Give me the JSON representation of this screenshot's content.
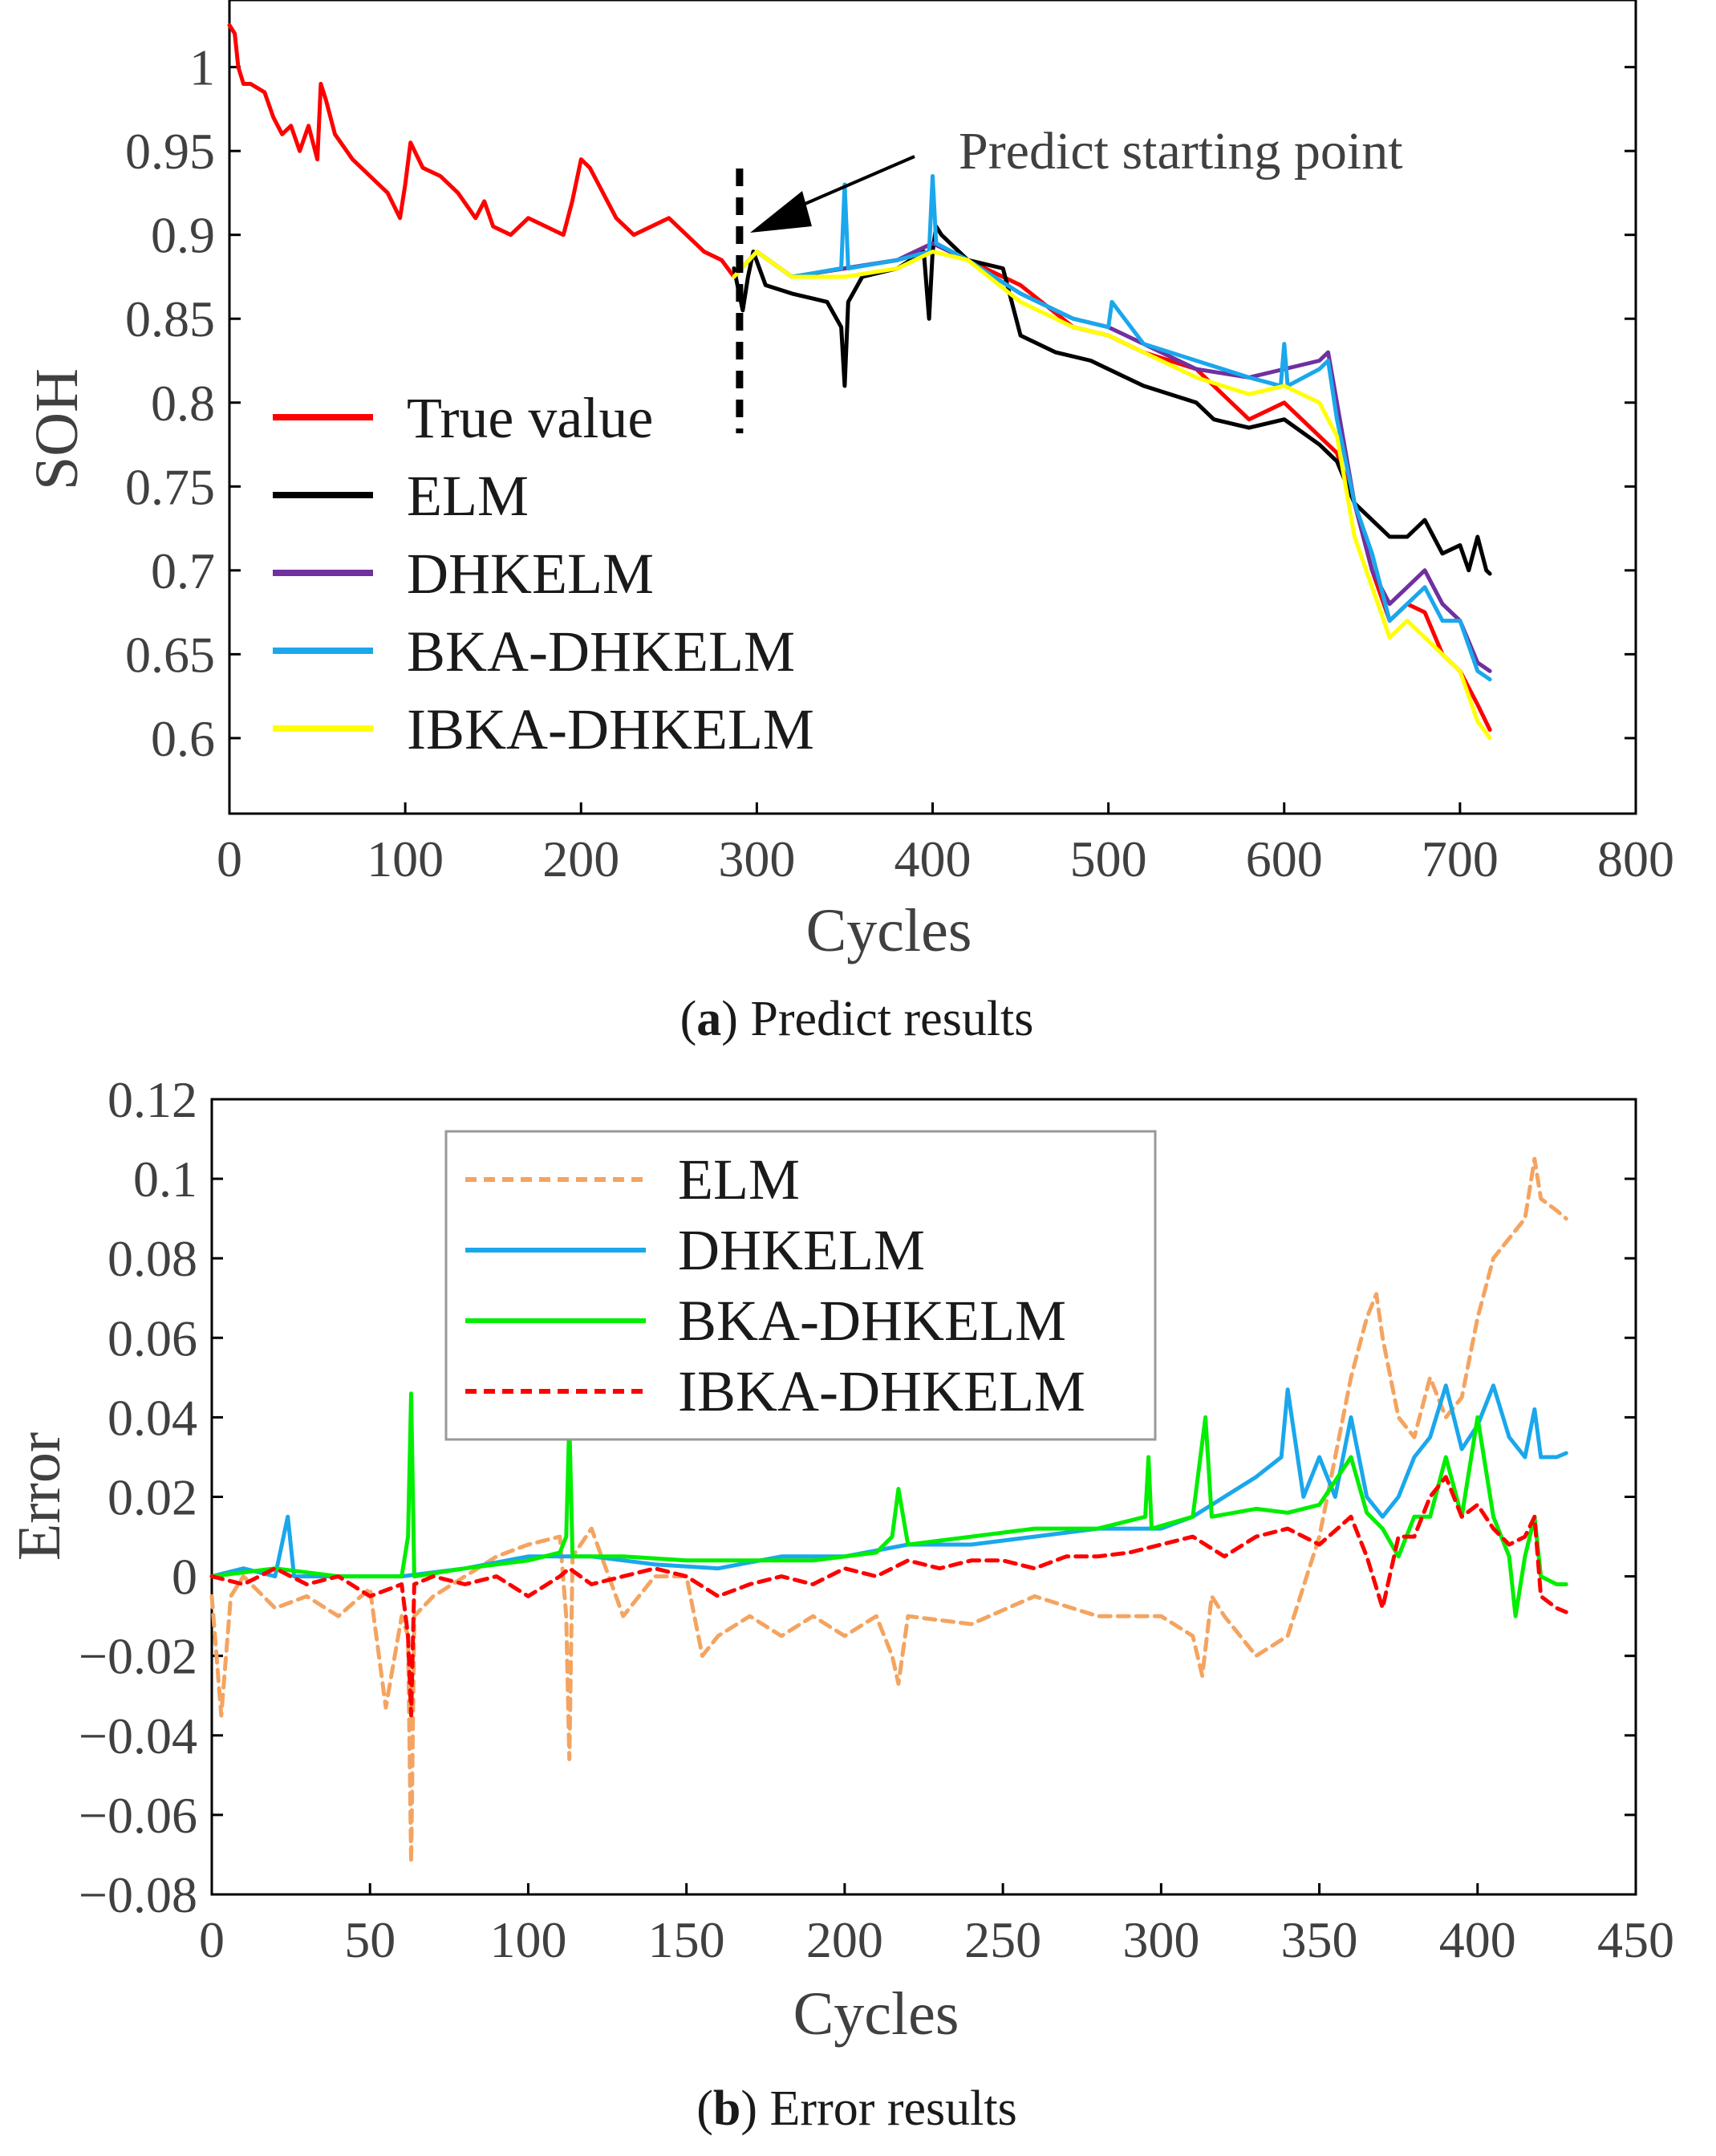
{
  "chart_data": [
    {
      "type": "line",
      "panel": "a",
      "caption_letter": "a",
      "caption_text": " Predict results",
      "xlabel": "Cycles",
      "ylabel": "SOH",
      "xlim": [
        0,
        800
      ],
      "ylim": [
        0.555,
        1.04
      ],
      "xticks": [
        "0",
        "100",
        "200",
        "300",
        "400",
        "500",
        "600",
        "700",
        "800"
      ],
      "yticks": [
        "0.6",
        "0.65",
        "0.7",
        "0.75",
        "0.8",
        "0.85",
        "0.9",
        "0.95",
        "1"
      ],
      "annotation": "Predict starting point",
      "predict_start_cycle": 287,
      "legend_position": "lower-left",
      "series": [
        {
          "name": "True value",
          "color": "#ff0000",
          "x": [
            0,
            3,
            5,
            8,
            12,
            20,
            25,
            30,
            35,
            40,
            45,
            50,
            52,
            55,
            60,
            70,
            80,
            90,
            97,
            100,
            103,
            110,
            120,
            130,
            140,
            145,
            150,
            160,
            170,
            180,
            190,
            195,
            200,
            205,
            210,
            220,
            230,
            240,
            250,
            260,
            270,
            280,
            287,
            300,
            320,
            350,
            380,
            400,
            420,
            450,
            480,
            500,
            520,
            550,
            580,
            600,
            620,
            630,
            640,
            650,
            660,
            670,
            680,
            690,
            700,
            710,
            717
          ],
          "y": [
            1.025,
            1.02,
            1.0,
            0.99,
            0.99,
            0.985,
            0.97,
            0.96,
            0.965,
            0.95,
            0.965,
            0.945,
            0.99,
            0.98,
            0.96,
            0.945,
            0.935,
            0.925,
            0.91,
            0.93,
            0.955,
            0.94,
            0.935,
            0.925,
            0.91,
            0.92,
            0.905,
            0.9,
            0.91,
            0.905,
            0.9,
            0.92,
            0.945,
            0.94,
            0.93,
            0.91,
            0.9,
            0.905,
            0.91,
            0.9,
            0.89,
            0.885,
            0.875,
            0.89,
            0.875,
            0.88,
            0.885,
            0.895,
            0.885,
            0.87,
            0.845,
            0.84,
            0.83,
            0.82,
            0.79,
            0.8,
            0.78,
            0.77,
            0.74,
            0.7,
            0.67,
            0.68,
            0.675,
            0.65,
            0.64,
            0.62,
            0.605
          ]
        },
        {
          "name": "ELM",
          "color": "#000000",
          "x": [
            287,
            292,
            295,
            298,
            305,
            320,
            340,
            348,
            350,
            352,
            360,
            380,
            395,
            398,
            400,
            402,
            405,
            420,
            440,
            450,
            470,
            490,
            500,
            520,
            550,
            560,
            580,
            600,
            620,
            630,
            640,
            650,
            660,
            670,
            680,
            690,
            700,
            705,
            710,
            715,
            717
          ],
          "y": [
            0.88,
            0.855,
            0.875,
            0.89,
            0.87,
            0.865,
            0.86,
            0.845,
            0.81,
            0.86,
            0.875,
            0.88,
            0.89,
            0.85,
            0.89,
            0.905,
            0.9,
            0.885,
            0.88,
            0.84,
            0.83,
            0.825,
            0.82,
            0.81,
            0.8,
            0.79,
            0.785,
            0.79,
            0.775,
            0.765,
            0.74,
            0.73,
            0.72,
            0.72,
            0.73,
            0.71,
            0.715,
            0.7,
            0.72,
            0.7,
            0.698
          ]
        },
        {
          "name": "DHKELM",
          "color": "#7030a0",
          "x": [
            287,
            300,
            320,
            350,
            380,
            400,
            420,
            450,
            480,
            500,
            520,
            550,
            580,
            600,
            620,
            625,
            630,
            640,
            650,
            660,
            670,
            680,
            690,
            700,
            710,
            717
          ],
          "y": [
            0.875,
            0.89,
            0.875,
            0.88,
            0.885,
            0.895,
            0.885,
            0.865,
            0.85,
            0.845,
            0.835,
            0.82,
            0.815,
            0.82,
            0.825,
            0.83,
            0.8,
            0.74,
            0.7,
            0.68,
            0.69,
            0.7,
            0.68,
            0.67,
            0.645,
            0.64
          ]
        },
        {
          "name": "BKA-DHKELM",
          "color": "#1aa7ec",
          "x": [
            287,
            300,
            320,
            348,
            350,
            352,
            380,
            398,
            400,
            402,
            420,
            450,
            480,
            500,
            502,
            520,
            550,
            580,
            598,
            600,
            602,
            620,
            625,
            630,
            640,
            650,
            660,
            670,
            680,
            690,
            700,
            710,
            717
          ],
          "y": [
            0.875,
            0.89,
            0.875,
            0.88,
            0.93,
            0.88,
            0.885,
            0.89,
            0.935,
            0.895,
            0.885,
            0.865,
            0.85,
            0.845,
            0.86,
            0.835,
            0.825,
            0.815,
            0.81,
            0.835,
            0.81,
            0.82,
            0.825,
            0.79,
            0.74,
            0.71,
            0.67,
            0.68,
            0.69,
            0.67,
            0.67,
            0.64,
            0.635
          ]
        },
        {
          "name": "IBKA-DHKELM",
          "color": "#ffff00",
          "x": [
            287,
            300,
            320,
            350,
            380,
            400,
            420,
            450,
            480,
            500,
            520,
            550,
            580,
            600,
            620,
            630,
            640,
            650,
            660,
            670,
            680,
            690,
            700,
            710,
            717
          ],
          "y": [
            0.875,
            0.89,
            0.875,
            0.875,
            0.88,
            0.89,
            0.885,
            0.86,
            0.845,
            0.84,
            0.83,
            0.815,
            0.805,
            0.81,
            0.8,
            0.78,
            0.72,
            0.69,
            0.66,
            0.67,
            0.66,
            0.65,
            0.64,
            0.61,
            0.6
          ]
        }
      ]
    },
    {
      "type": "line",
      "panel": "b",
      "caption_letter": "b",
      "caption_text": " Error results",
      "xlabel": "Cycles",
      "ylabel": "Error",
      "xlim": [
        0,
        450
      ],
      "ylim": [
        -0.08,
        0.12
      ],
      "xticks": [
        "0",
        "50",
        "100",
        "150",
        "200",
        "250",
        "300",
        "350",
        "400",
        "450"
      ],
      "yticks": [
        "−0.08",
        "−0.06",
        "−0.04",
        "−0.02",
        "0",
        "0.02",
        "0.04",
        "0.06",
        "0.08",
        "0.1",
        "0.12"
      ],
      "legend_position": "top-center",
      "series": [
        {
          "name": "ELM",
          "color": "#f4a460",
          "dash": true,
          "x": [
            0,
            3,
            6,
            10,
            20,
            30,
            40,
            50,
            55,
            60,
            62,
            63,
            64,
            70,
            80,
            90,
            100,
            110,
            112,
            113,
            114,
            120,
            130,
            140,
            150,
            155,
            160,
            170,
            180,
            190,
            200,
            210,
            215,
            217,
            220,
            240,
            260,
            280,
            300,
            310,
            313,
            316,
            320,
            330,
            340,
            350,
            360,
            365,
            368,
            370,
            375,
            380,
            385,
            390,
            395,
            400,
            405,
            410,
            415,
            418,
            420,
            425,
            428
          ],
          "y": [
            -0.005,
            -0.035,
            -0.005,
            0.0,
            -0.008,
            -0.005,
            -0.01,
            -0.003,
            -0.033,
            -0.01,
            -0.015,
            -0.072,
            -0.01,
            -0.005,
            0.0,
            0.005,
            0.008,
            0.01,
            -0.01,
            -0.046,
            0.005,
            0.012,
            -0.01,
            0.0,
            0.0,
            -0.02,
            -0.015,
            -0.01,
            -0.015,
            -0.01,
            -0.015,
            -0.01,
            -0.02,
            -0.027,
            -0.01,
            -0.012,
            -0.005,
            -0.01,
            -0.01,
            -0.015,
            -0.025,
            -0.005,
            -0.01,
            -0.02,
            -0.015,
            0.01,
            0.05,
            0.065,
            0.071,
            0.06,
            0.04,
            0.035,
            0.05,
            0.04,
            0.045,
            0.065,
            0.08,
            0.085,
            0.09,
            0.105,
            0.095,
            0.092,
            0.09
          ]
        },
        {
          "name": "DHKELM",
          "color": "#1aa7ec",
          "dash": false,
          "x": [
            0,
            10,
            20,
            24,
            26,
            40,
            60,
            80,
            100,
            120,
            140,
            160,
            180,
            200,
            220,
            240,
            260,
            280,
            300,
            310,
            320,
            330,
            338,
            340,
            345,
            350,
            355,
            360,
            365,
            370,
            375,
            380,
            385,
            390,
            395,
            400,
            405,
            410,
            415,
            418,
            420,
            425,
            428
          ],
          "y": [
            0.0,
            0.002,
            0.0,
            0.015,
            0.0,
            0.0,
            0.0,
            0.002,
            0.005,
            0.005,
            0.003,
            0.002,
            0.005,
            0.005,
            0.008,
            0.008,
            0.01,
            0.012,
            0.012,
            0.015,
            0.02,
            0.025,
            0.03,
            0.047,
            0.02,
            0.03,
            0.02,
            0.04,
            0.02,
            0.015,
            0.02,
            0.03,
            0.035,
            0.048,
            0.032,
            0.038,
            0.048,
            0.035,
            0.03,
            0.042,
            0.03,
            0.03,
            0.031
          ]
        },
        {
          "name": "BKA-DHKELM",
          "color": "#00ee00",
          "dash": false,
          "x": [
            0,
            20,
            40,
            60,
            62,
            63,
            64,
            80,
            100,
            110,
            112,
            113,
            114,
            130,
            150,
            170,
            190,
            210,
            215,
            217,
            220,
            240,
            260,
            280,
            295,
            296,
            297,
            310,
            314,
            316,
            330,
            340,
            350,
            360,
            365,
            370,
            375,
            380,
            385,
            390,
            395,
            400,
            405,
            410,
            412,
            415,
            418,
            420,
            425,
            428
          ],
          "y": [
            0.0,
            0.002,
            0.0,
            0.0,
            0.01,
            0.046,
            0.0,
            0.002,
            0.004,
            0.006,
            0.01,
            0.039,
            0.005,
            0.005,
            0.004,
            0.004,
            0.004,
            0.006,
            0.01,
            0.022,
            0.008,
            0.01,
            0.012,
            0.012,
            0.015,
            0.03,
            0.012,
            0.015,
            0.04,
            0.015,
            0.017,
            0.016,
            0.018,
            0.03,
            0.016,
            0.012,
            0.005,
            0.015,
            0.015,
            0.03,
            0.015,
            0.04,
            0.015,
            0.005,
            -0.01,
            0.005,
            0.015,
            0.0,
            -0.002,
            -0.002
          ]
        },
        {
          "name": "IBKA-DHKELM",
          "color": "#ff0000",
          "dash": true,
          "x": [
            0,
            10,
            20,
            30,
            40,
            50,
            60,
            62,
            63,
            64,
            70,
            80,
            90,
            100,
            110,
            113,
            120,
            130,
            140,
            150,
            160,
            170,
            180,
            190,
            200,
            210,
            220,
            230,
            240,
            250,
            260,
            270,
            280,
            290,
            300,
            310,
            320,
            330,
            340,
            350,
            360,
            365,
            370,
            375,
            380,
            385,
            390,
            395,
            400,
            405,
            410,
            415,
            418,
            420,
            425,
            428
          ],
          "y": [
            0.0,
            -0.002,
            0.002,
            -0.002,
            0.0,
            -0.005,
            -0.002,
            -0.015,
            -0.035,
            -0.002,
            0.0,
            -0.002,
            0.0,
            -0.005,
            0.0,
            0.002,
            -0.002,
            0.0,
            0.002,
            0.0,
            -0.005,
            -0.002,
            0.0,
            -0.002,
            0.002,
            0.0,
            0.004,
            0.002,
            0.004,
            0.004,
            0.002,
            0.005,
            0.005,
            0.006,
            0.008,
            0.01,
            0.005,
            0.01,
            0.012,
            0.008,
            0.015,
            0.005,
            -0.008,
            0.01,
            0.01,
            0.02,
            0.025,
            0.015,
            0.018,
            0.012,
            0.008,
            0.01,
            0.015,
            -0.005,
            -0.008,
            -0.009
          ]
        }
      ]
    }
  ]
}
